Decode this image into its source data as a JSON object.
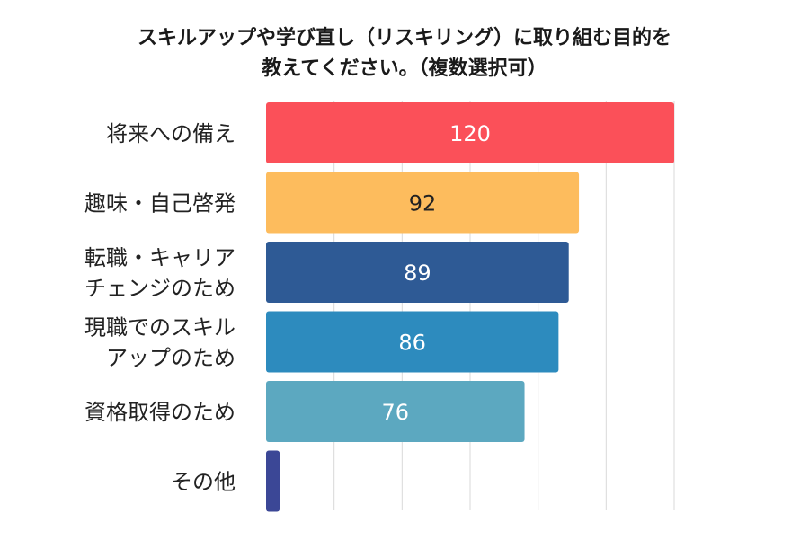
{
  "title": {
    "line1": "スキルアップや学び直し（リスキリング）に取り組む目的を",
    "line2": "教えてください。（複数選択可）"
  },
  "chart_data": {
    "type": "bar",
    "orientation": "horizontal",
    "categories": [
      [
        "将来への備え"
      ],
      [
        "趣味・自己啓発"
      ],
      [
        "転職・キャリア",
        "チェンジのため"
      ],
      [
        "現職でのスキル",
        "アップのため"
      ],
      [
        "資格取得のため"
      ],
      [
        "その他"
      ]
    ],
    "values": [
      120,
      92,
      89,
      86,
      76,
      4
    ],
    "data_labels": [
      "120",
      "92",
      "89",
      "86",
      "76",
      ""
    ],
    "bar_colors": [
      "#fb5059",
      "#fdbc5d",
      "#2e5a95",
      "#2d8bbe",
      "#5ca8c0",
      "#3b4796"
    ],
    "label_colors": [
      "#ffffff",
      "#222222",
      "#ffffff",
      "#ffffff",
      "#ffffff",
      "#ffffff"
    ],
    "xlim": [
      0,
      120
    ],
    "grid": true,
    "legend": "none"
  }
}
